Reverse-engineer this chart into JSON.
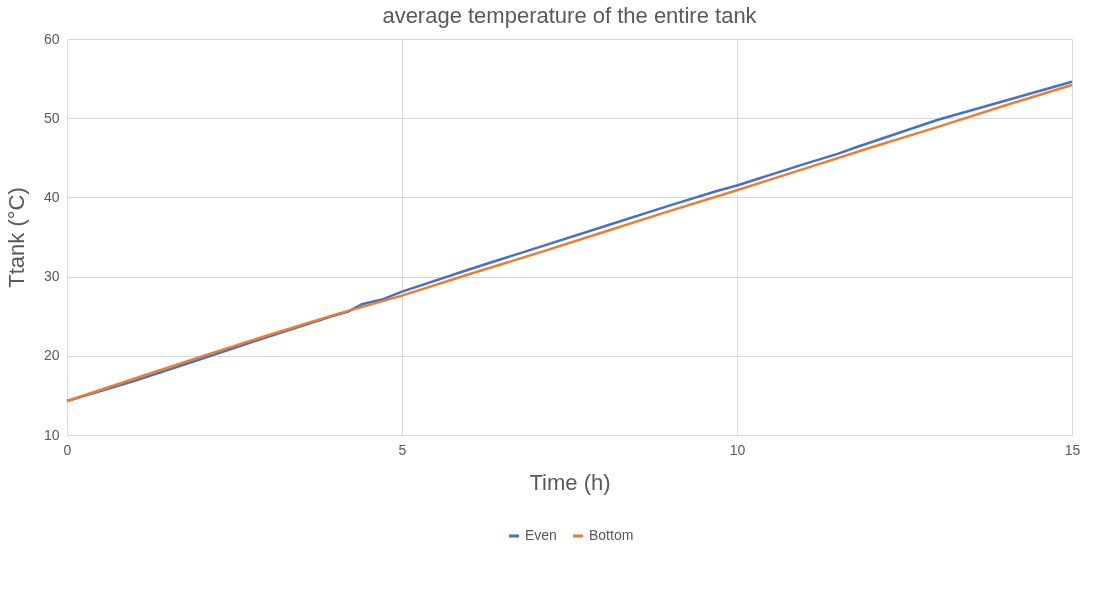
{
  "chart_data": {
    "type": "line",
    "title": "average temperature of the entire tank",
    "xlabel": "Time (h)",
    "ylabel": "Ttank (°C)",
    "xlim": [
      0,
      15
    ],
    "xticks": [
      0,
      5,
      10,
      15
    ],
    "ylim": [
      10,
      60
    ],
    "yticks": [
      10,
      20,
      30,
      40,
      50,
      60
    ],
    "grid": true,
    "legend": "bottom",
    "line_style": "solid",
    "marker": "none",
    "series": [
      {
        "name": "Even",
        "color": "#4472c4",
        "x": [
          0,
          1,
          2,
          3,
          4,
          4.2,
          4.4,
          4.7,
          5,
          6,
          7,
          8,
          9,
          9.7,
          10,
          11,
          11.5,
          11.8,
          13,
          14,
          15
        ],
        "values": [
          14.3,
          16.8,
          19.6,
          22.4,
          25.1,
          25.6,
          26.5,
          27.1,
          28.1,
          30.9,
          33.6,
          36.3,
          39.0,
          40.8,
          41.5,
          44.2,
          45.5,
          46.4,
          49.8,
          52.2,
          54.6
        ]
      },
      {
        "name": "Bottom",
        "color": "#ed7d31",
        "x": [
          0,
          1,
          2,
          3,
          4,
          5,
          6,
          7,
          8,
          9,
          10,
          11,
          12,
          13,
          14,
          15
        ],
        "values": [
          14.3,
          17.1,
          19.9,
          22.6,
          25.2,
          27.6,
          30.3,
          32.9,
          35.6,
          38.3,
          40.9,
          43.6,
          46.3,
          48.9,
          51.6,
          54.2
        ]
      }
    ]
  }
}
